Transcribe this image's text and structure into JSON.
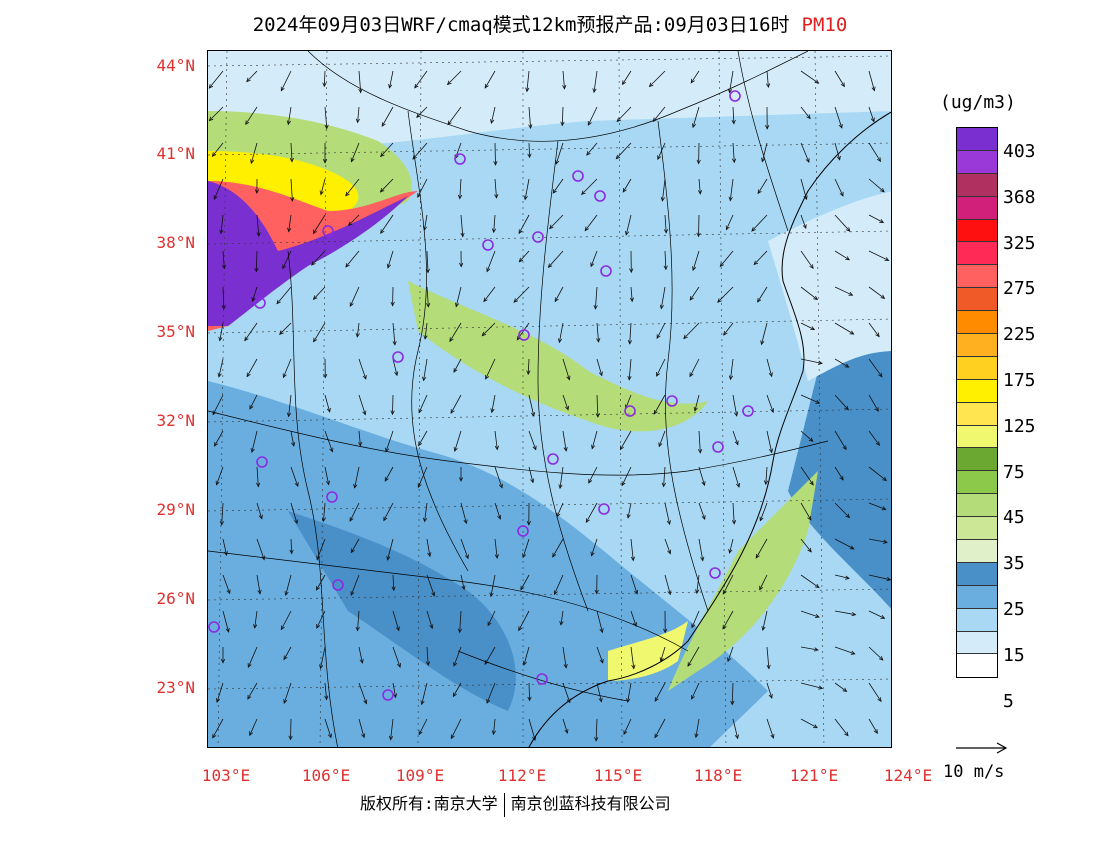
{
  "title": {
    "main": "2024年09月03日WRF/cmaq模式12km预报产品:09月03日16时",
    "pollutant": "PM10"
  },
  "axes": {
    "lat_labels": [
      "44°N",
      "41°N",
      "38°N",
      "35°N",
      "32°N",
      "29°N",
      "26°N",
      "23°N"
    ],
    "lon_labels": [
      "103°E",
      "106°E",
      "109°E",
      "112°E",
      "115°E",
      "118°E",
      "121°E",
      "124°E"
    ]
  },
  "legend": {
    "unit": "(ug/m3)",
    "labels": [
      "403",
      "368",
      "325",
      "275",
      "225",
      "175",
      "125",
      "75",
      "45",
      "35",
      "25",
      "15",
      "5"
    ],
    "colors": [
      "#7a2fd0",
      "#9a38d8",
      "#b03060",
      "#d0207a",
      "#ff1010",
      "#ff2a55",
      "#ff6060",
      "#f05a28",
      "#ff8c00",
      "#ffb020",
      "#ffd020",
      "#fff000",
      "#ffe650",
      "#f0f870",
      "#6aa832",
      "#8cc84a",
      "#b4dc78",
      "#cce896",
      "#e0f0c8",
      "#4a90c8",
      "#6aaee0",
      "#a8d8f4",
      "#d4ecfa",
      "#ffffff"
    ]
  },
  "wind_reference": {
    "label": "10 m/s"
  },
  "footer": {
    "rights": "版权所有:南京大学",
    "company": "南京创蓝科技有限公司"
  },
  "colors": {
    "frame": "#000000",
    "axis_label": "#e03030",
    "station_marker": "#8a2be2"
  }
}
